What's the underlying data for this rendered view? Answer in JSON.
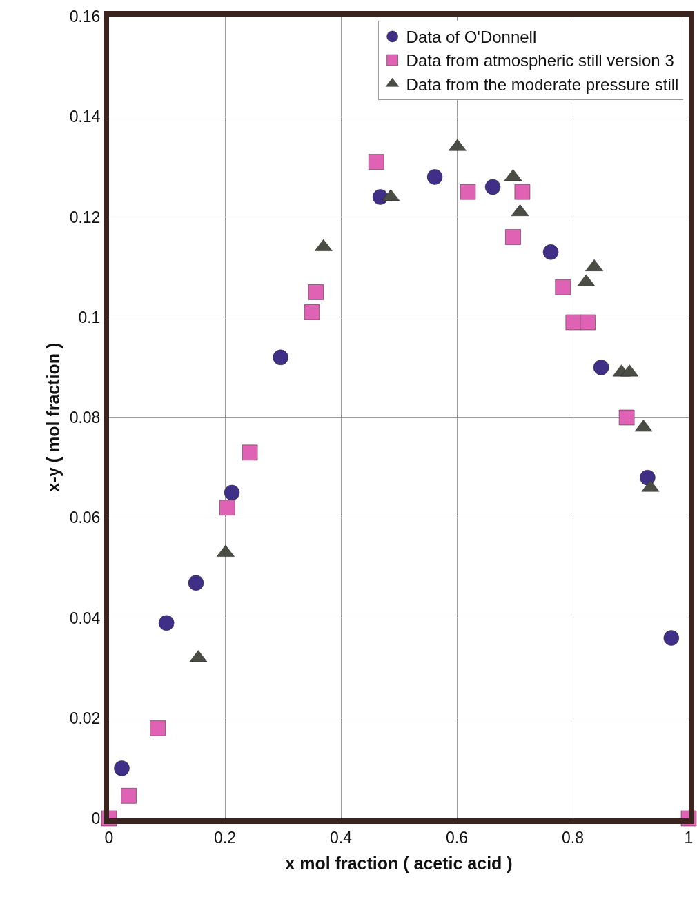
{
  "chart_data": {
    "type": "scatter",
    "xlabel": "x mol fraction ( acetic acid )",
    "ylabel": "x-y ( mol fraction )",
    "xlim": [
      0,
      1
    ],
    "xticks": [
      0,
      0.2,
      0.4,
      0.6,
      0.8,
      1
    ],
    "ylim": [
      0,
      0.16
    ],
    "yticks": [
      0,
      0.02,
      0.04,
      0.06,
      0.08,
      0.1,
      0.12,
      0.14,
      0.16
    ],
    "grid": true,
    "legend": "top right",
    "series": [
      {
        "name": "Data of O'Donnell",
        "color": "#3f2f86",
        "marker": "circle",
        "x": [
          0.022,
          0.099,
          0.15,
          0.212,
          0.296,
          0.468,
          0.562,
          0.662,
          0.762,
          0.849,
          0.929,
          0.97
        ],
        "values": [
          0.01,
          0.039,
          0.047,
          0.065,
          0.092,
          0.124,
          0.128,
          0.126,
          0.113,
          0.09,
          0.068,
          0.036
        ]
      },
      {
        "name": "Data from atmospheric still version 3",
        "color": "#e062b4",
        "marker": "square",
        "x": [
          0,
          0.034,
          0.084,
          0.204,
          0.243,
          0.35,
          0.357,
          0.461,
          0.619,
          0.697,
          0.713,
          0.783,
          0.801,
          0.826,
          0.893,
          1
        ],
        "values": [
          0,
          0.0045,
          0.018,
          0.062,
          0.073,
          0.101,
          0.105,
          0.131,
          0.125,
          0.116,
          0.125,
          0.106,
          0.099,
          0.099,
          0.08,
          0
        ]
      },
      {
        "name": "Data from the moderate pressure still",
        "color": "#4a4d44",
        "marker": "triangle",
        "x": [
          0.154,
          0.201,
          0.37,
          0.486,
          0.601,
          0.697,
          0.709,
          0.823,
          0.837,
          0.884,
          0.898,
          0.922,
          0.934
        ],
        "values": [
          0.032,
          0.053,
          0.114,
          0.124,
          0.134,
          0.128,
          0.121,
          0.107,
          0.11,
          0.089,
          0.089,
          0.078,
          0.066
        ]
      }
    ]
  }
}
